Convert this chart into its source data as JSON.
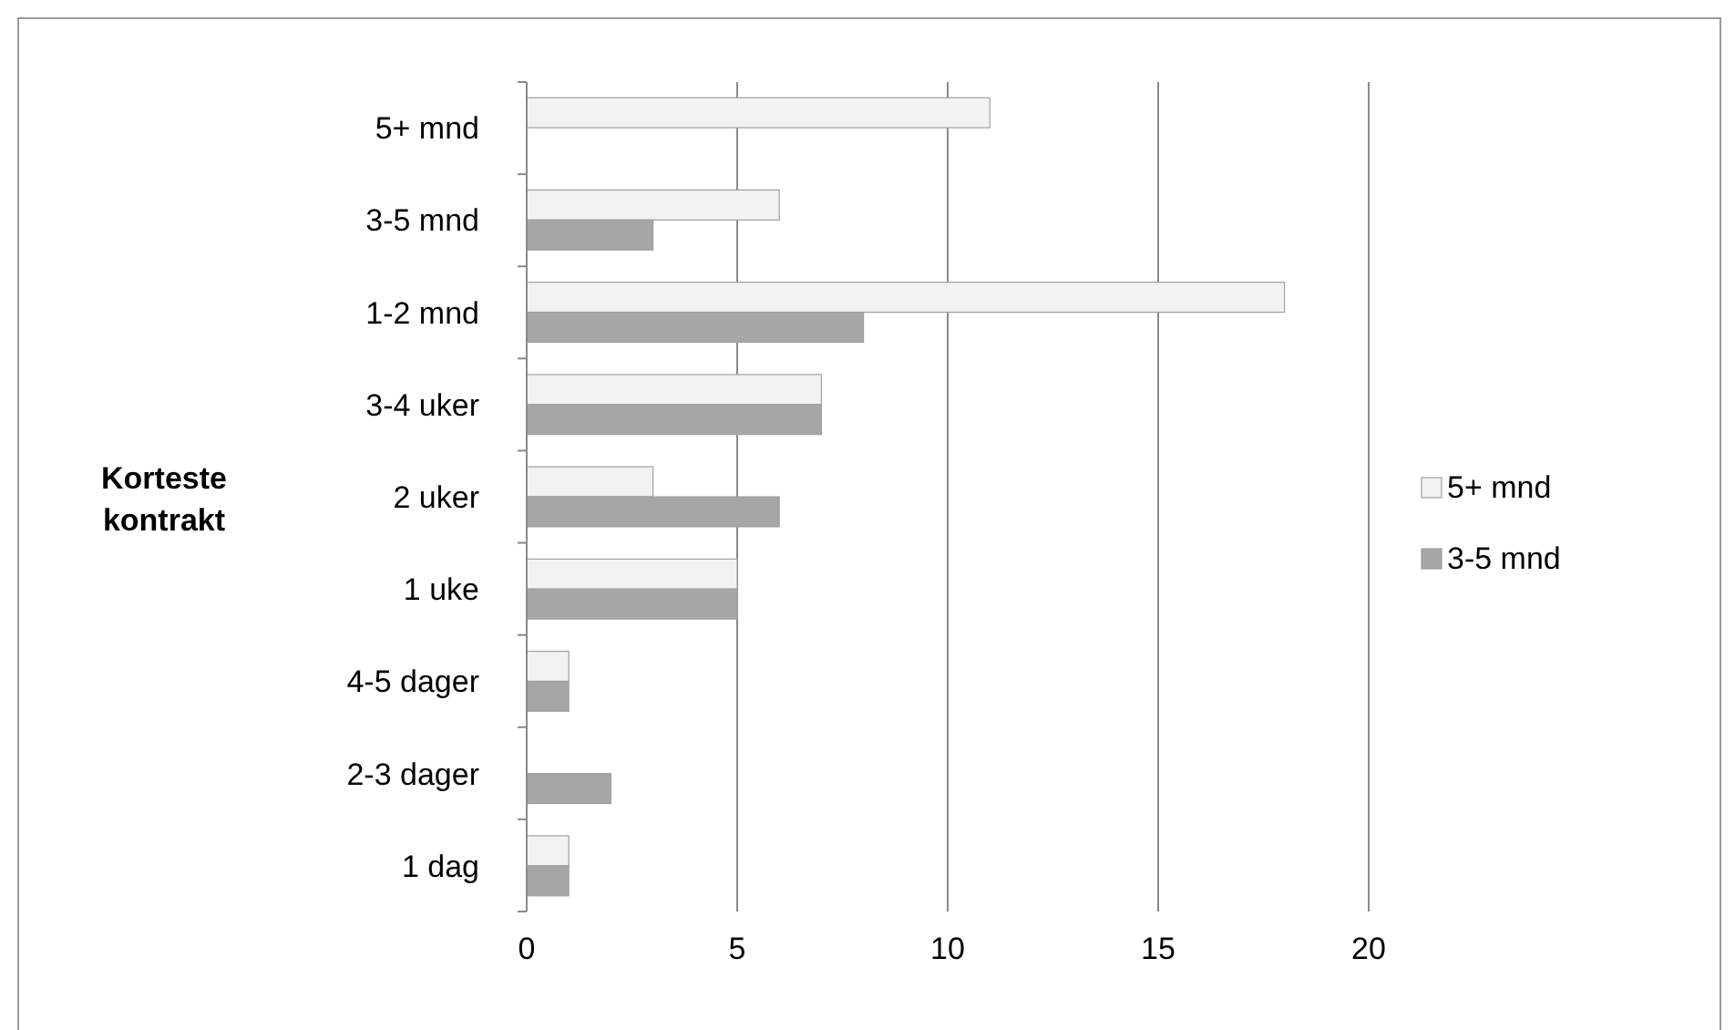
{
  "chart_data": {
    "type": "bar",
    "orientation": "horizontal",
    "ylabel": "Korteste kontrakt",
    "categories": [
      "5+ mnd",
      "3-5 mnd",
      "1-2 mnd",
      "3-4 uker",
      "2 uker",
      "1 uke",
      "4-5 dager",
      "2-3 dager",
      "1 dag"
    ],
    "series": [
      {
        "name": "5+ mnd",
        "color": "#f2f2f2",
        "values": [
          11,
          6,
          18,
          7,
          3,
          5,
          1,
          0,
          1
        ]
      },
      {
        "name": "3-5 mnd",
        "color": "#a6a6a6",
        "values": [
          0,
          3,
          8,
          7,
          6,
          5,
          1,
          2,
          1
        ]
      }
    ],
    "xlim": [
      0,
      20
    ],
    "xticks": [
      0,
      5,
      10,
      15,
      20
    ],
    "grid": "x",
    "legend": "right"
  }
}
